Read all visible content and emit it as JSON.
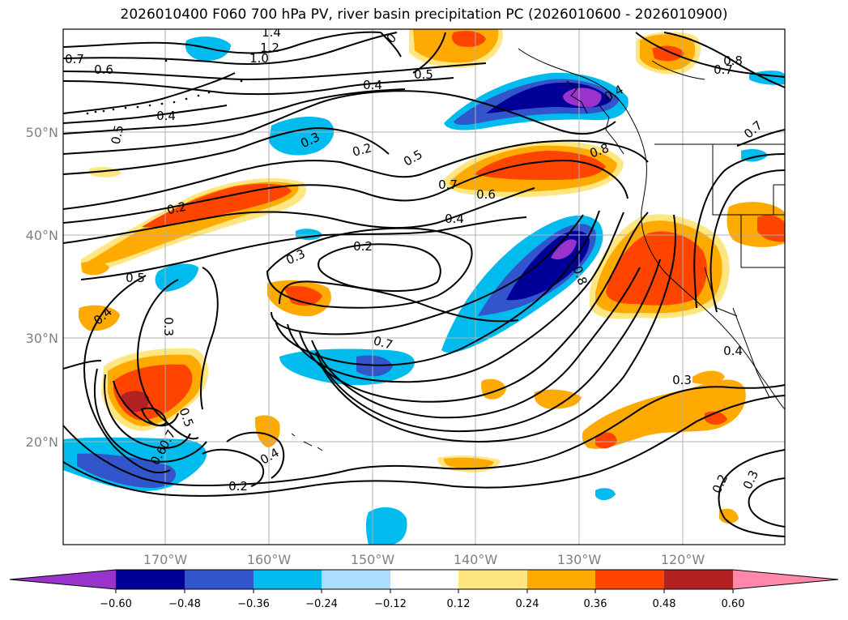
{
  "title": "2026010400 F060 700 hPa PV, river basin precipitation PC (2026010600 - 2026010900)",
  "lat_labels": [
    "50°N",
    "40°N",
    "30°N",
    "20°N"
  ],
  "lon_labels": [
    "170°W",
    "160°W",
    "150°W",
    "140°W",
    "130°W",
    "120°W"
  ],
  "colorbar": {
    "colors": [
      "#9933cc",
      "#000099",
      "#3355cc",
      "#00bbee",
      "#aaddff",
      "#ffffff",
      "#ffe680",
      "#ffaa00",
      "#ff4400",
      "#b22222",
      "#ff88aa"
    ],
    "tick_labels": [
      "−0.60",
      "−0.48",
      "−0.36",
      "−0.24",
      "−0.12",
      "0.12",
      "0.24",
      "0.36",
      "0.48",
      "0.60"
    ]
  },
  "contour_labels": [
    {
      "text": "1.4"
    },
    {
      "text": "0"
    },
    {
      "text": "1.2"
    },
    {
      "text": "0.7"
    },
    {
      "text": "1.0"
    },
    {
      "text": "0.6"
    },
    {
      "text": "0.5"
    },
    {
      "text": "0.4"
    },
    {
      "text": "0.8"
    },
    {
      "text": "0.7"
    },
    {
      "text": "0.4"
    },
    {
      "text": "0.4"
    },
    {
      "text": "0.5"
    },
    {
      "text": "0.3"
    },
    {
      "text": "0.2"
    },
    {
      "text": "0.7"
    },
    {
      "text": "0.5"
    },
    {
      "text": "0.8"
    },
    {
      "text": "0.7"
    },
    {
      "text": "0.6"
    },
    {
      "text": "0.2"
    },
    {
      "text": "0.4"
    },
    {
      "text": "0.3"
    },
    {
      "text": "0.2"
    },
    {
      "text": "0.5"
    },
    {
      "text": "0.8"
    },
    {
      "text": "0.4"
    },
    {
      "text": "0.3"
    },
    {
      "text": "0.7"
    },
    {
      "text": "0.4"
    },
    {
      "text": "0.3"
    },
    {
      "text": "0.5"
    },
    {
      "text": "0.6"
    },
    {
      "text": "0.7"
    },
    {
      "text": "0.4"
    },
    {
      "text": "0.2"
    },
    {
      "text": "0.2"
    },
    {
      "text": "0.3"
    }
  ]
}
